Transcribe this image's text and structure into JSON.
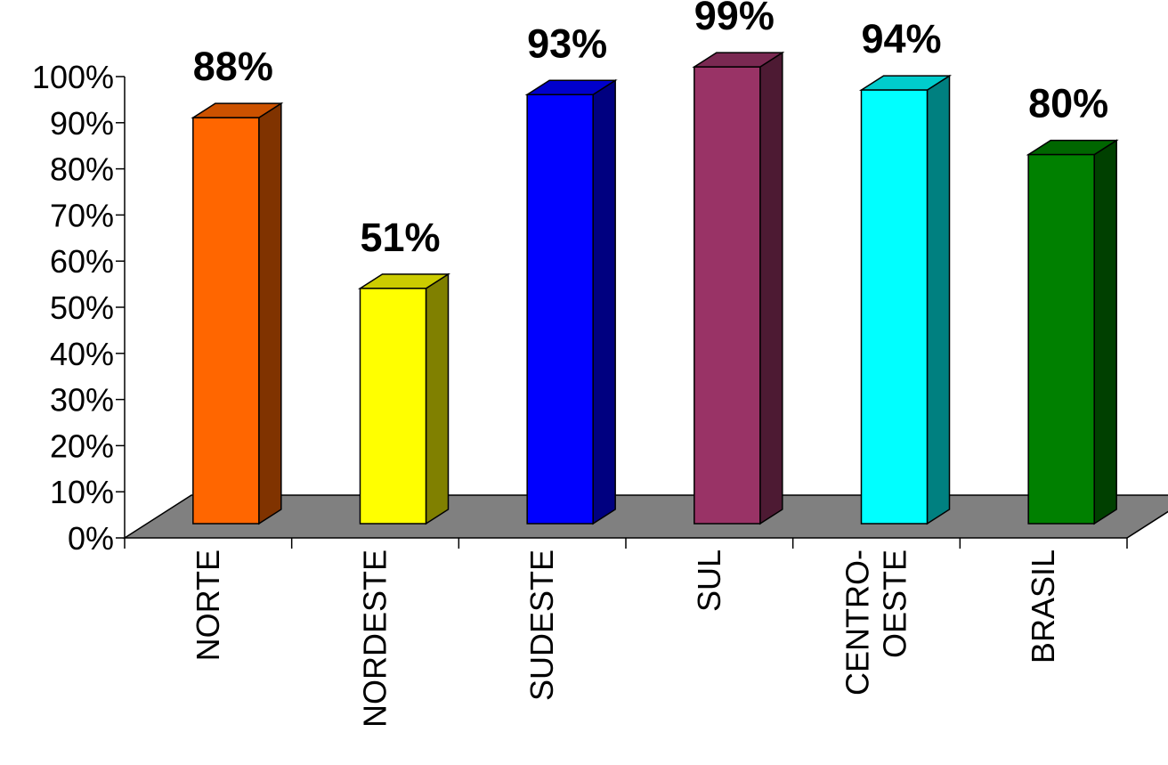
{
  "chart_data": {
    "type": "bar",
    "categories": [
      [
        "NORTE"
      ],
      [
        "NORDESTE"
      ],
      [
        "SUDESTE"
      ],
      [
        "SUL"
      ],
      [
        "CENTRO-",
        "OESTE"
      ],
      [
        "BRASIL"
      ]
    ],
    "values": [
      88,
      51,
      93,
      99,
      94,
      80
    ],
    "data_labels": [
      "88%",
      "51%",
      "93%",
      "99%",
      "94%",
      "80%"
    ],
    "yticks": [
      "0%",
      "10%",
      "20%",
      "30%",
      "40%",
      "50%",
      "60%",
      "70%",
      "80%",
      "90%",
      "100%"
    ],
    "ylim": [
      0,
      100
    ],
    "three_d": true,
    "grid": false,
    "floor_color": "#808080",
    "colors": {
      "front": [
        "#ff6600",
        "#ffff00",
        "#0000ff",
        "#993366",
        "#00ffff",
        "#008000"
      ],
      "side": [
        "#803300",
        "#808000",
        "#000080",
        "#4d1a33",
        "#008080",
        "#004000"
      ],
      "top": [
        "#cc5200",
        "#cccc00",
        "#0000cc",
        "#7a2952",
        "#00cccc",
        "#006600"
      ]
    }
  }
}
